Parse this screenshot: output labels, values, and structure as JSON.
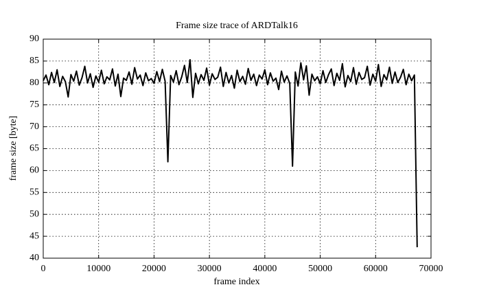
{
  "chart_data": {
    "type": "line",
    "title": "Frame size trace of ARDTalk16",
    "x_label": "frame index",
    "y_label": "frame size [byte]",
    "x": [
      0,
      500,
      1000,
      1500,
      2000,
      2500,
      3000,
      3500,
      4000,
      4500,
      5000,
      5500,
      6000,
      6500,
      7000,
      7500,
      8000,
      8500,
      9000,
      9500,
      10000,
      10500,
      11000,
      11500,
      12000,
      12500,
      13000,
      13500,
      14000,
      14500,
      15000,
      15500,
      16000,
      16500,
      17000,
      17500,
      18000,
      18500,
      19000,
      19500,
      20000,
      20500,
      21000,
      21500,
      22000,
      22500,
      23000,
      23500,
      24000,
      24500,
      25000,
      25500,
      26000,
      26500,
      27000,
      27500,
      28000,
      28500,
      29000,
      29500,
      30000,
      30500,
      31000,
      31500,
      32000,
      32500,
      33000,
      33500,
      34000,
      34500,
      35000,
      35500,
      36000,
      36500,
      37000,
      37500,
      38000,
      38500,
      39000,
      39500,
      40000,
      40500,
      41000,
      41500,
      42000,
      42500,
      43000,
      43500,
      44000,
      44500,
      45000,
      45500,
      46000,
      46500,
      47000,
      47500,
      48000,
      48500,
      49000,
      49500,
      50000,
      50500,
      51000,
      51500,
      52000,
      52500,
      53000,
      53500,
      54000,
      54500,
      55000,
      55500,
      56000,
      56500,
      57000,
      57500,
      58000,
      58500,
      59000,
      59500,
      60000,
      60500,
      61000,
      61500,
      62000,
      62500,
      63000,
      63500,
      64000,
      64500,
      65000,
      65500,
      66000,
      66500,
      67000,
      67500
    ],
    "series": [
      {
        "name": "ARDTalk16",
        "color": "#000000",
        "values": [
          80.5,
          81.8,
          79.6,
          82.4,
          80.1,
          83.0,
          79.2,
          81.5,
          80.3,
          76.8,
          81.9,
          80.4,
          82.7,
          79.5,
          81.2,
          83.8,
          80.0,
          82.1,
          79.0,
          81.6,
          80.2,
          82.9,
          79.8,
          81.4,
          80.7,
          83.2,
          79.3,
          82.0,
          76.9,
          81.1,
          80.6,
          82.5,
          79.7,
          83.5,
          80.9,
          81.8,
          79.4,
          82.3,
          80.5,
          81.0,
          79.9,
          82.6,
          80.3,
          83.1,
          80.4,
          62.0,
          81.7,
          80.2,
          82.8,
          79.6,
          81.4,
          84.0,
          80.1,
          85.3,
          76.7,
          82.2,
          79.8,
          81.9,
          80.6,
          83.4,
          79.5,
          82.1,
          80.8,
          81.3,
          83.6,
          79.2,
          82.4,
          80.0,
          81.7,
          78.8,
          82.9,
          80.3,
          81.5,
          79.7,
          83.3,
          80.6,
          82.0,
          79.4,
          81.8,
          80.9,
          83.0,
          79.6,
          82.3,
          80.4,
          81.1,
          78.5,
          82.7,
          80.2,
          81.6,
          79.9,
          61.0,
          82.5,
          79.3,
          84.6,
          80.7,
          83.9,
          77.2,
          82.0,
          80.5,
          81.4,
          79.8,
          82.8,
          80.1,
          81.9,
          83.2,
          79.4,
          82.2,
          80.6,
          84.4,
          79.1,
          81.7,
          80.3,
          83.5,
          79.7,
          82.4,
          80.8,
          81.2,
          83.8,
          79.5,
          82.0,
          80.4,
          84.2,
          79.2,
          81.9,
          80.7,
          83.6,
          79.9,
          82.5,
          80.1,
          81.3,
          83.1,
          79.6,
          82.0,
          80.5,
          81.8,
          42.5
        ]
      }
    ],
    "xlim": [
      0,
      70000
    ],
    "ylim": [
      40,
      90
    ],
    "xticks": [
      0,
      10000,
      20000,
      30000,
      40000,
      50000,
      60000,
      70000
    ],
    "yticks": [
      40,
      45,
      50,
      55,
      60,
      65,
      70,
      75,
      80,
      85,
      90
    ],
    "grid": true
  }
}
